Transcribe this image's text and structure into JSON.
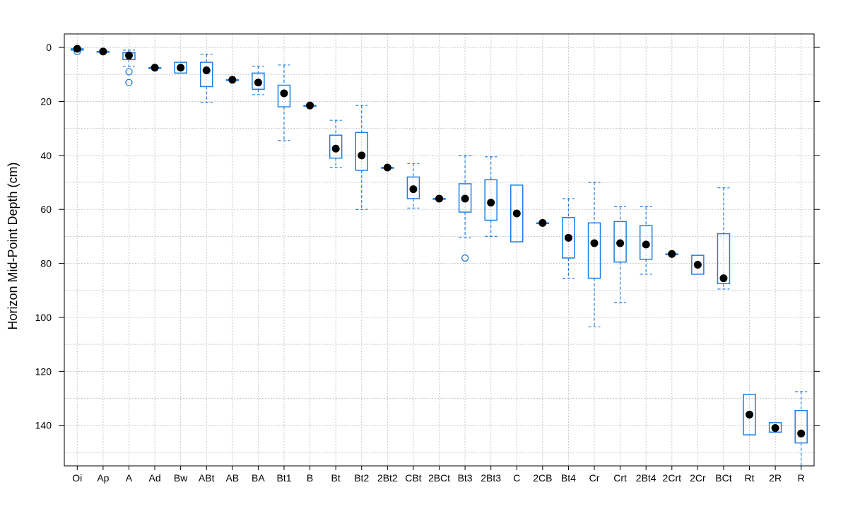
{
  "chart_data": {
    "type": "boxplot",
    "title": "",
    "xlabel": "",
    "ylabel": "Horizon Mid-Point Depth (cm)",
    "y_reversed": true,
    "ylim": [
      155,
      -5
    ],
    "y_ticks": [
      0,
      20,
      40,
      60,
      80,
      100,
      120,
      140
    ],
    "grid": true,
    "colors": {
      "box": "#1f7fe0",
      "median": "#000000",
      "grid": "#c8c8c8",
      "frame": "#000000"
    },
    "categories": [
      "Oi",
      "Ap",
      "A",
      "Ad",
      "Bw",
      "ABt",
      "AB",
      "BA",
      "Bt1",
      "B",
      "Bt",
      "Bt2",
      "2Bt2",
      "CBt",
      "2BCt",
      "Bt3",
      "2Bt3",
      "C",
      "2CB",
      "Bt4",
      "Cr",
      "Crt",
      "2Bt4",
      "2Crt",
      "2Cr",
      "BCt",
      "Rt",
      "2R",
      "R"
    ],
    "boxes": [
      {
        "label": "Oi",
        "lw": 0.5,
        "q1": 0.5,
        "median": 0.5,
        "q3": 1.0,
        "uw": 1.0,
        "outliers": [
          1.5
        ]
      },
      {
        "label": "Ap",
        "lw": 1.5,
        "q1": 1.5,
        "median": 1.5,
        "q3": 1.5,
        "uw": 1.5,
        "outliers": []
      },
      {
        "label": "A",
        "lw": 1.0,
        "q1": 2.0,
        "median": 3.0,
        "q3": 4.5,
        "uw": 7.0,
        "outliers": [
          9.0,
          13.0
        ]
      },
      {
        "label": "Ad",
        "lw": 7.5,
        "q1": 7.5,
        "median": 7.5,
        "q3": 7.5,
        "uw": 7.5,
        "outliers": []
      },
      {
        "label": "Bw",
        "lw": 5.5,
        "q1": 5.5,
        "median": 7.5,
        "q3": 9.5,
        "uw": 9.5,
        "outliers": []
      },
      {
        "label": "ABt",
        "lw": 2.5,
        "q1": 5.5,
        "median": 8.5,
        "q3": 14.5,
        "uw": 20.5,
        "outliers": []
      },
      {
        "label": "AB",
        "lw": 12.0,
        "q1": 12.0,
        "median": 12.0,
        "q3": 12.0,
        "uw": 12.0,
        "outliers": []
      },
      {
        "label": "BA",
        "lw": 7.0,
        "q1": 9.5,
        "median": 13.0,
        "q3": 15.5,
        "uw": 17.5,
        "outliers": []
      },
      {
        "label": "Bt1",
        "lw": 6.5,
        "q1": 14.0,
        "median": 17.0,
        "q3": 22.0,
        "uw": 34.5,
        "outliers": []
      },
      {
        "label": "B",
        "lw": 21.5,
        "q1": 21.5,
        "median": 21.5,
        "q3": 21.5,
        "uw": 21.5,
        "outliers": []
      },
      {
        "label": "Bt",
        "lw": 27.0,
        "q1": 32.5,
        "median": 37.5,
        "q3": 41.0,
        "uw": 44.5,
        "outliers": []
      },
      {
        "label": "Bt2",
        "lw": 21.5,
        "q1": 31.5,
        "median": 40.0,
        "q3": 45.5,
        "uw": 60.0,
        "outliers": []
      },
      {
        "label": "2Bt2",
        "lw": 44.5,
        "q1": 44.5,
        "median": 44.5,
        "q3": 44.5,
        "uw": 44.5,
        "outliers": []
      },
      {
        "label": "CBt",
        "lw": 43.0,
        "q1": 48.0,
        "median": 52.5,
        "q3": 56.0,
        "uw": 59.5,
        "outliers": []
      },
      {
        "label": "2BCt",
        "lw": 56.0,
        "q1": 56.0,
        "median": 56.0,
        "q3": 56.0,
        "uw": 56.0,
        "outliers": []
      },
      {
        "label": "Bt3",
        "lw": 40.0,
        "q1": 50.5,
        "median": 56.0,
        "q3": 61.0,
        "uw": 70.5,
        "outliers": [
          78.0
        ]
      },
      {
        "label": "2Bt3",
        "lw": 40.5,
        "q1": 49.0,
        "median": 57.5,
        "q3": 64.0,
        "uw": 70.0,
        "outliers": []
      },
      {
        "label": "C",
        "lw": 51.0,
        "q1": 51.0,
        "median": 61.5,
        "q3": 72.0,
        "uw": 72.0,
        "outliers": []
      },
      {
        "label": "2CB",
        "lw": 65.0,
        "q1": 65.0,
        "median": 65.0,
        "q3": 65.0,
        "uw": 65.0,
        "outliers": []
      },
      {
        "label": "Bt4",
        "lw": 56.0,
        "q1": 63.0,
        "median": 70.5,
        "q3": 78.0,
        "uw": 85.5,
        "outliers": []
      },
      {
        "label": "Cr",
        "lw": 50.0,
        "q1": 65.0,
        "median": 72.5,
        "q3": 85.5,
        "uw": 103.5,
        "outliers": []
      },
      {
        "label": "Crt",
        "lw": 59.0,
        "q1": 64.5,
        "median": 72.5,
        "q3": 79.5,
        "uw": 94.5,
        "outliers": []
      },
      {
        "label": "2Bt4",
        "lw": 59.0,
        "q1": 66.0,
        "median": 73.0,
        "q3": 78.5,
        "uw": 84.0,
        "outliers": []
      },
      {
        "label": "2Crt",
        "lw": 76.5,
        "q1": 76.5,
        "median": 76.5,
        "q3": 76.5,
        "uw": 76.5,
        "outliers": []
      },
      {
        "label": "2Cr",
        "lw": 77.0,
        "q1": 77.0,
        "median": 80.5,
        "q3": 84.0,
        "uw": 84.0,
        "outliers": []
      },
      {
        "label": "BCt",
        "lw": 52.0,
        "q1": 69.0,
        "median": 85.5,
        "q3": 87.5,
        "uw": 89.5,
        "outliers": []
      },
      {
        "label": "Rt",
        "lw": 128.5,
        "q1": 128.5,
        "median": 136.0,
        "q3": 143.5,
        "uw": 143.5,
        "outliers": []
      },
      {
        "label": "2R",
        "lw": 139.0,
        "q1": 139.0,
        "median": 141.0,
        "q3": 142.5,
        "uw": 142.5,
        "outliers": []
      },
      {
        "label": "R",
        "lw": 127.5,
        "q1": 134.5,
        "median": 143.0,
        "q3": 146.5,
        "uw": 160.0,
        "outliers": []
      }
    ]
  }
}
